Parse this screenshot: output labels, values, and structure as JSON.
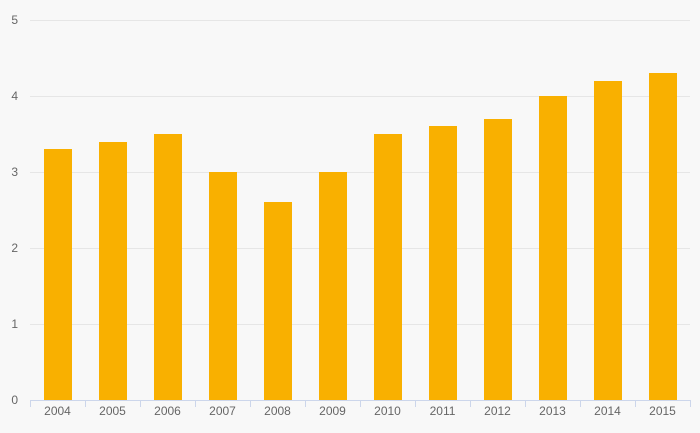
{
  "chart_data": {
    "type": "bar",
    "title": "",
    "xlabel": "",
    "ylabel": "",
    "categories": [
      "2004",
      "2005",
      "2006",
      "2007",
      "2008",
      "2009",
      "2010",
      "2011",
      "2012",
      "2013",
      "2014",
      "2015"
    ],
    "values": [
      3.3,
      3.4,
      3.5,
      3.0,
      2.6,
      3.0,
      3.5,
      3.6,
      3.7,
      4.0,
      4.2,
      4.3
    ],
    "ylim": [
      0,
      5
    ],
    "yticks": [
      "0",
      "1",
      "2",
      "3",
      "4",
      "5"
    ],
    "grid": true,
    "legend": false,
    "colors": {
      "bar": "#f9b000",
      "background": "#f8f8f8",
      "gridline": "#e6e6e6",
      "axis_line": "#ccd6eb",
      "label_text": "#666666"
    }
  }
}
